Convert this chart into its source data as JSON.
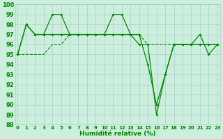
{
  "xlabel": "Humidité relative (%)",
  "background_color": "#cceedd",
  "grid_color": "#aacccc",
  "line_color": "#008800",
  "ylim": [
    88,
    100
  ],
  "xlim": [
    -0.3,
    23.3
  ],
  "ytick_min": 88,
  "ytick_max": 100,
  "xticks": [
    0,
    1,
    2,
    3,
    4,
    5,
    6,
    7,
    8,
    9,
    10,
    11,
    12,
    13,
    14,
    15,
    16,
    17,
    18,
    19,
    20,
    21,
    22,
    23
  ],
  "series": [
    [
      95,
      98,
      97,
      97,
      99,
      99,
      97,
      97,
      97,
      97,
      97,
      99,
      99,
      97,
      97,
      94,
      90,
      93,
      96,
      96,
      96,
      97,
      95,
      96
    ],
    [
      95,
      98,
      97,
      97,
      97,
      97,
      97,
      97,
      97,
      97,
      97,
      97,
      97,
      97,
      96,
      96,
      89,
      93,
      96,
      96,
      96,
      96,
      96,
      96
    ]
  ],
  "smooth_series": [
    95,
    95,
    95,
    95,
    96,
    96,
    97,
    97,
    97,
    97,
    97,
    97,
    97,
    97,
    97,
    96,
    96,
    96,
    96,
    96,
    96,
    96,
    96,
    96
  ]
}
